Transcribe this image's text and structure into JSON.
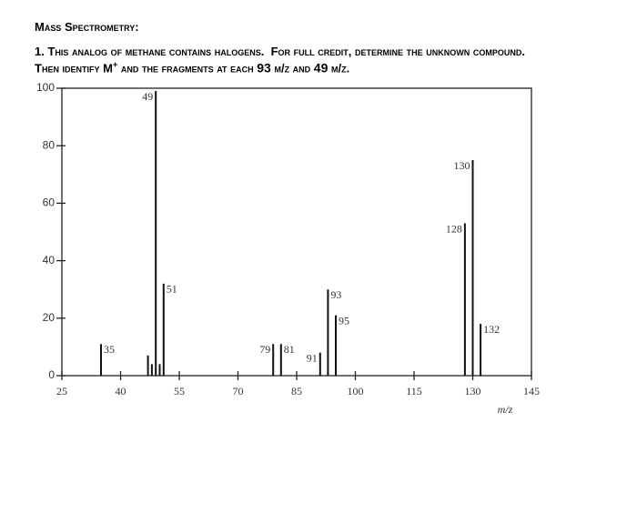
{
  "header": {
    "title": "Mass Spectrometry:"
  },
  "question": {
    "line1": "1. This analog of methane contains halogens.  For full credit, determine the unknown compound.",
    "line2": [
      "Then identify M",
      "+",
      " and the fragments at each ",
      "93",
      " m/z and ",
      "49",
      " m/z."
    ]
  },
  "chart_data": {
    "type": "stem",
    "x_label": "m/z",
    "xlim": [
      25,
      145
    ],
    "xticks": [
      25,
      40,
      55,
      70,
      85,
      100,
      115,
      130,
      145
    ],
    "ylim": [
      0,
      100
    ],
    "yticks": [
      0,
      20,
      40,
      60,
      80,
      100
    ],
    "color": "#111111",
    "series": [
      {
        "labeled": true,
        "x": [
          35,
          49,
          51,
          79,
          81,
          91,
          93,
          95,
          128,
          130,
          132
        ],
        "values": [
          11,
          99,
          32,
          11,
          11,
          8,
          30,
          21,
          53,
          75,
          18
        ]
      },
      {
        "labeled": false,
        "x": [
          47,
          48,
          50
        ],
        "values": [
          7,
          4,
          4
        ]
      }
    ]
  }
}
